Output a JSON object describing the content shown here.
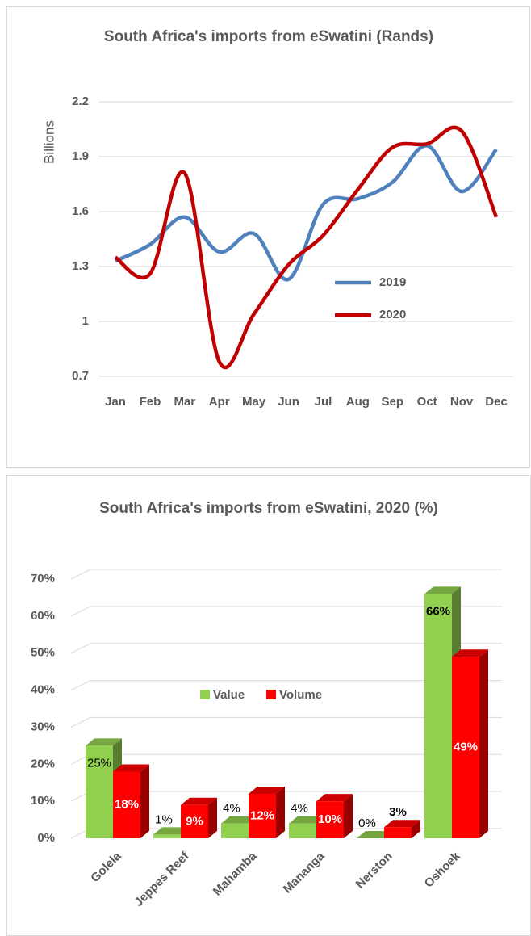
{
  "chart_data": [
    {
      "type": "line",
      "title": "South Africa's imports from eSwatini (Rands)",
      "y_label": "Billions",
      "categories": [
        "Jan",
        "Feb",
        "Mar",
        "Apr",
        "May",
        "Jun",
        "Jul",
        "Aug",
        "Sep",
        "Oct",
        "Nov",
        "Dec"
      ],
      "series": [
        {
          "name": "2019",
          "color": "#4f81bd",
          "values": [
            1.33,
            1.42,
            1.57,
            1.38,
            1.48,
            1.23,
            1.64,
            1.67,
            1.76,
            1.96,
            1.71,
            1.94
          ]
        },
        {
          "name": "2020",
          "color": "#c00000",
          "values": [
            1.35,
            1.26,
            1.81,
            0.78,
            1.04,
            1.31,
            1.47,
            1.72,
            1.95,
            1.97,
            2.04,
            1.57
          ]
        }
      ],
      "ylim": [
        0.7,
        2.2
      ],
      "yticks": [
        0.7,
        1,
        1.3,
        1.6,
        1.9,
        2.2
      ],
      "grid": true,
      "legend": "inside"
    },
    {
      "type": "bar3d",
      "title": "South Africa's imports from eSwatini, 2020 (%)",
      "categories": [
        "Golela",
        "Jeppes Reef",
        "Mahamba",
        "Mananga",
        "Nerston",
        "Oshoek"
      ],
      "series": [
        {
          "name": "Value",
          "color": "#92d050",
          "values": [
            25,
            1,
            4,
            4,
            0,
            66
          ],
          "value_labels": [
            "25%",
            "1%",
            "4%",
            "4%",
            "0%",
            "66%"
          ]
        },
        {
          "name": "Volume",
          "color": "#ff0000",
          "values": [
            18,
            9,
            12,
            10,
            3,
            49
          ],
          "value_labels": [
            "18%",
            "9%",
            "12%",
            "10%",
            "3%",
            "49%"
          ]
        }
      ],
      "ylim": [
        0,
        70
      ],
      "yticks": [
        {
          "value": 0,
          "label": "0%"
        },
        {
          "value": 10,
          "label": "10%"
        },
        {
          "value": 20,
          "label": "20%"
        },
        {
          "value": 30,
          "label": "30%"
        },
        {
          "value": 40,
          "label": "40%"
        },
        {
          "value": 50,
          "label": "50%"
        },
        {
          "value": 60,
          "label": "60%"
        },
        {
          "value": 70,
          "label": "70%"
        }
      ],
      "grid": true,
      "legend": "inside"
    }
  ]
}
